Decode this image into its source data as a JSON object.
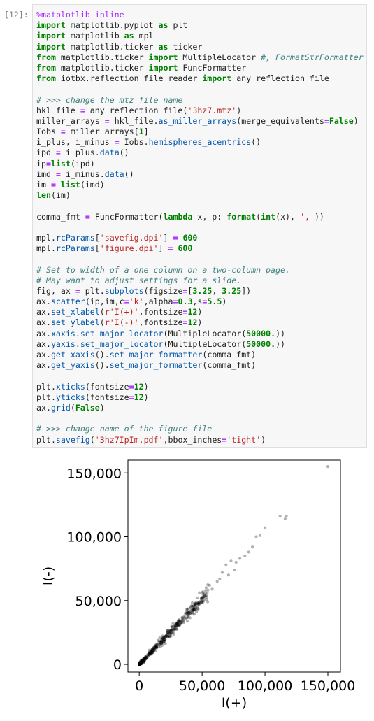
{
  "cell": {
    "prompt": "[12]:",
    "code_lines": [
      [
        [
          "magic",
          "%matplotlib inline"
        ]
      ],
      [
        [
          "kw",
          "import"
        ],
        [
          "p",
          " matplotlib.pyplot "
        ],
        [
          "kw",
          "as"
        ],
        [
          "p",
          " plt"
        ]
      ],
      [
        [
          "kw",
          "import"
        ],
        [
          "p",
          " matplotlib "
        ],
        [
          "kw",
          "as"
        ],
        [
          "p",
          " mpl"
        ]
      ],
      [
        [
          "kw",
          "import"
        ],
        [
          "p",
          " matplotlib.ticker "
        ],
        [
          "kw",
          "as"
        ],
        [
          "p",
          " ticker"
        ]
      ],
      [
        [
          "kw",
          "from"
        ],
        [
          "p",
          " matplotlib.ticker "
        ],
        [
          "kw",
          "import"
        ],
        [
          "p",
          " MultipleLocator "
        ],
        [
          "com",
          "#, FormatStrFormatter"
        ]
      ],
      [
        [
          "kw",
          "from"
        ],
        [
          "p",
          " matplotlib.ticker "
        ],
        [
          "kw",
          "import"
        ],
        [
          "p",
          " FuncFormatter"
        ]
      ],
      [
        [
          "kw",
          "from"
        ],
        [
          "p",
          " iotbx.reflection_file_reader "
        ],
        [
          "kw",
          "import"
        ],
        [
          "p",
          " any_reflection_file"
        ]
      ],
      [
        [
          "p",
          ""
        ]
      ],
      [
        [
          "com",
          "# >>> change the mtz file name"
        ]
      ],
      [
        [
          "p",
          "hkl_file "
        ],
        [
          "op",
          "="
        ],
        [
          "p",
          " any_reflection_file("
        ],
        [
          "str",
          "'3hz7.mtz'"
        ],
        [
          "p",
          ")"
        ]
      ],
      [
        [
          "p",
          "miller_arrays "
        ],
        [
          "op",
          "="
        ],
        [
          "p",
          " hkl_file."
        ],
        [
          "fn",
          "as_miller_arrays"
        ],
        [
          "p",
          "(merge_equivalents"
        ],
        [
          "op",
          "="
        ],
        [
          "bool",
          "False"
        ],
        [
          "p",
          ")"
        ]
      ],
      [
        [
          "p",
          "Iobs "
        ],
        [
          "op",
          "="
        ],
        [
          "p",
          " miller_arrays["
        ],
        [
          "num",
          "1"
        ],
        [
          "p",
          "]"
        ]
      ],
      [
        [
          "p",
          "i_plus, i_minus "
        ],
        [
          "op",
          "="
        ],
        [
          "p",
          " Iobs."
        ],
        [
          "fn",
          "hemispheres_acentrics"
        ],
        [
          "p",
          "()"
        ]
      ],
      [
        [
          "p",
          "ipd "
        ],
        [
          "op",
          "="
        ],
        [
          "p",
          " i_plus."
        ],
        [
          "fn",
          "data"
        ],
        [
          "p",
          "()"
        ]
      ],
      [
        [
          "p",
          "ip"
        ],
        [
          "op",
          "="
        ],
        [
          "kw",
          "list"
        ],
        [
          "p",
          "(ipd)"
        ]
      ],
      [
        [
          "p",
          "imd "
        ],
        [
          "op",
          "="
        ],
        [
          "p",
          " i_minus."
        ],
        [
          "fn",
          "data"
        ],
        [
          "p",
          "()"
        ]
      ],
      [
        [
          "p",
          "im "
        ],
        [
          "op",
          "="
        ],
        [
          "p",
          " "
        ],
        [
          "kw",
          "list"
        ],
        [
          "p",
          "(imd)"
        ]
      ],
      [
        [
          "kw",
          "len"
        ],
        [
          "p",
          "(im)"
        ]
      ],
      [
        [
          "p",
          ""
        ]
      ],
      [
        [
          "p",
          "comma_fmt "
        ],
        [
          "op",
          "="
        ],
        [
          "p",
          " FuncFormatter("
        ],
        [
          "kw",
          "lambda"
        ],
        [
          "p",
          " x, p: "
        ],
        [
          "kw",
          "format"
        ],
        [
          "p",
          "("
        ],
        [
          "kw",
          "int"
        ],
        [
          "p",
          "(x), "
        ],
        [
          "str",
          "','"
        ],
        [
          "p",
          "))"
        ]
      ],
      [
        [
          "p",
          ""
        ]
      ],
      [
        [
          "p",
          "mpl."
        ],
        [
          "fn",
          "rcParams"
        ],
        [
          "p",
          "["
        ],
        [
          "str",
          "'savefig.dpi'"
        ],
        [
          "p",
          "] "
        ],
        [
          "op",
          "="
        ],
        [
          "p",
          " "
        ],
        [
          "num",
          "600"
        ]
      ],
      [
        [
          "p",
          "mpl."
        ],
        [
          "fn",
          "rcParams"
        ],
        [
          "p",
          "["
        ],
        [
          "str",
          "'figure.dpi'"
        ],
        [
          "p",
          "] "
        ],
        [
          "op",
          "="
        ],
        [
          "p",
          " "
        ],
        [
          "num",
          "600"
        ]
      ],
      [
        [
          "p",
          ""
        ]
      ],
      [
        [
          "com",
          "# Set to width of a one column on a two-column page."
        ]
      ],
      [
        [
          "com",
          "# May want to adjust settings for a slide."
        ]
      ],
      [
        [
          "p",
          "fig, ax "
        ],
        [
          "op",
          "="
        ],
        [
          "p",
          " plt."
        ],
        [
          "fn",
          "subplots"
        ],
        [
          "p",
          "(figsize"
        ],
        [
          "op",
          "="
        ],
        [
          "p",
          "["
        ],
        [
          "num",
          "3.25"
        ],
        [
          "p",
          ", "
        ],
        [
          "num",
          "3.25"
        ],
        [
          "p",
          "])"
        ]
      ],
      [
        [
          "p",
          "ax."
        ],
        [
          "fn",
          "scatter"
        ],
        [
          "p",
          "(ip,im,c"
        ],
        [
          "op",
          "="
        ],
        [
          "str",
          "'k'"
        ],
        [
          "p",
          ",alpha"
        ],
        [
          "op",
          "="
        ],
        [
          "num",
          "0.3"
        ],
        [
          "p",
          ",s"
        ],
        [
          "op",
          "="
        ],
        [
          "num",
          "5.5"
        ],
        [
          "p",
          ")"
        ]
      ],
      [
        [
          "p",
          "ax."
        ],
        [
          "fn",
          "set_xlabel"
        ],
        [
          "p",
          "("
        ],
        [
          "str",
          "r'I(+)'"
        ],
        [
          "p",
          ",fontsize"
        ],
        [
          "op",
          "="
        ],
        [
          "num",
          "12"
        ],
        [
          "p",
          ")"
        ]
      ],
      [
        [
          "p",
          "ax."
        ],
        [
          "fn",
          "set_ylabel"
        ],
        [
          "p",
          "("
        ],
        [
          "str",
          "r'I(-)'"
        ],
        [
          "p",
          ",fontsize"
        ],
        [
          "op",
          "="
        ],
        [
          "num",
          "12"
        ],
        [
          "p",
          ")"
        ]
      ],
      [
        [
          "p",
          "ax."
        ],
        [
          "fn",
          "xaxis"
        ],
        [
          "p",
          "."
        ],
        [
          "fn",
          "set_major_locator"
        ],
        [
          "p",
          "(MultipleLocator("
        ],
        [
          "num",
          "50000."
        ],
        [
          "p",
          "))"
        ]
      ],
      [
        [
          "p",
          "ax."
        ],
        [
          "fn",
          "yaxis"
        ],
        [
          "p",
          "."
        ],
        [
          "fn",
          "set_major_locator"
        ],
        [
          "p",
          "(MultipleLocator("
        ],
        [
          "num",
          "50000."
        ],
        [
          "p",
          "))"
        ]
      ],
      [
        [
          "p",
          "ax."
        ],
        [
          "fn",
          "get_xaxis"
        ],
        [
          "p",
          "()."
        ],
        [
          "fn",
          "set_major_formatter"
        ],
        [
          "p",
          "(comma_fmt)"
        ]
      ],
      [
        [
          "p",
          "ax."
        ],
        [
          "fn",
          "get_yaxis"
        ],
        [
          "p",
          "()."
        ],
        [
          "fn",
          "set_major_formatter"
        ],
        [
          "p",
          "(comma_fmt)"
        ]
      ],
      [
        [
          "p",
          ""
        ]
      ],
      [
        [
          "p",
          "plt."
        ],
        [
          "fn",
          "xticks"
        ],
        [
          "p",
          "(fontsize"
        ],
        [
          "op",
          "="
        ],
        [
          "num",
          "12"
        ],
        [
          "p",
          ")"
        ]
      ],
      [
        [
          "p",
          "plt."
        ],
        [
          "fn",
          "yticks"
        ],
        [
          "p",
          "(fontsize"
        ],
        [
          "op",
          "="
        ],
        [
          "num",
          "12"
        ],
        [
          "p",
          ")"
        ]
      ],
      [
        [
          "p",
          "ax."
        ],
        [
          "fn",
          "grid"
        ],
        [
          "p",
          "("
        ],
        [
          "bool",
          "False"
        ],
        [
          "p",
          ")"
        ]
      ],
      [
        [
          "p",
          ""
        ]
      ],
      [
        [
          "com",
          "# >>> change name of the figure file"
        ]
      ],
      [
        [
          "p",
          "plt."
        ],
        [
          "fn",
          "savefig"
        ],
        [
          "p",
          "("
        ],
        [
          "str",
          "'3hz7IpIm.pdf'"
        ],
        [
          "p",
          ",bbox_inches"
        ],
        [
          "op",
          "="
        ],
        [
          "str",
          "'tight'"
        ],
        [
          "p",
          ")"
        ]
      ]
    ]
  },
  "colors": {
    "keyword": "#008000",
    "operator": "#aa22ff",
    "string": "#ba2121",
    "comment": "#408080",
    "attribute": "#0055aa",
    "text": "#212121",
    "cell_background": "#f7f7f7",
    "cell_border": "#dfdfdf",
    "marker": "#000000"
  },
  "chart_data": {
    "type": "scatter",
    "xlabel": "I(+)",
    "ylabel": "I(-)",
    "xlim": [
      -9000,
      160000
    ],
    "ylim": [
      -6000,
      160000
    ],
    "xticks": [
      0,
      50000,
      100000,
      150000
    ],
    "yticks": [
      0,
      50000,
      100000,
      150000
    ],
    "xtick_labels": [
      "0",
      "50,000",
      "100,000",
      "150,000"
    ],
    "ytick_labels": [
      "0",
      "50,000",
      "100,000",
      "150,000"
    ],
    "grid": false,
    "marker_color": "k",
    "alpha": 0.3,
    "outliers": [
      {
        "x": 150000,
        "y": 155000
      },
      {
        "x": 112000,
        "y": 116000
      },
      {
        "x": 116000,
        "y": 114000
      },
      {
        "x": 117000,
        "y": 116000
      },
      {
        "x": 100000,
        "y": 107000
      },
      {
        "x": 96000,
        "y": 101000
      },
      {
        "x": 93000,
        "y": 100000
      },
      {
        "x": 90000,
        "y": 92000
      },
      {
        "x": 87000,
        "y": 88000
      },
      {
        "x": 84000,
        "y": 85000
      },
      {
        "x": 80000,
        "y": 83000
      },
      {
        "x": 77000,
        "y": 80000
      },
      {
        "x": 73000,
        "y": 81000
      },
      {
        "x": 76000,
        "y": 74000
      },
      {
        "x": 71000,
        "y": 70000
      },
      {
        "x": 69000,
        "y": 78000
      },
      {
        "x": 66000,
        "y": 72000
      },
      {
        "x": 64000,
        "y": 67000
      },
      {
        "x": 62000,
        "y": 65000
      },
      {
        "x": 58000,
        "y": 59000
      },
      {
        "x": 56000,
        "y": 62000
      },
      {
        "x": 54000,
        "y": 56000
      }
    ],
    "dense_band": {
      "x_range": [
        0,
        55000
      ],
      "slope": 1.02,
      "point_count": 420
    }
  }
}
